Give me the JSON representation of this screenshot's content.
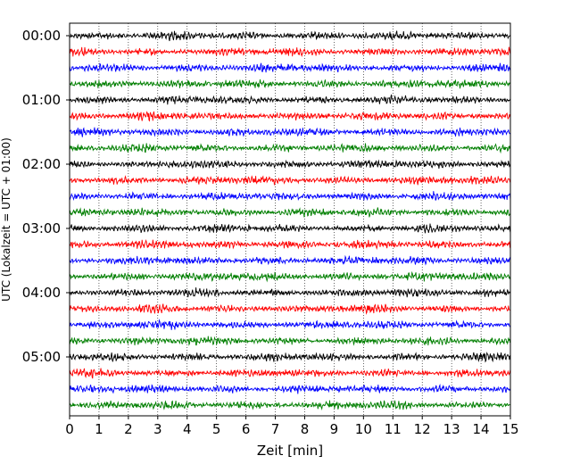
{
  "chart_data": {
    "type": "line",
    "subtype": "helicorder",
    "xlabel": "Zeit  [min]",
    "ylabel": "UTC (Lokalzeit = UTC + 01:00)",
    "xlim": [
      0,
      15
    ],
    "x_ticks": [
      "0",
      "1",
      "2",
      "3",
      "4",
      "5",
      "6",
      "7",
      "8",
      "9",
      "10",
      "11",
      "12",
      "13",
      "14",
      "15"
    ],
    "y_ticks": [
      "00:00",
      "01:00",
      "02:00",
      "03:00",
      "04:00",
      "05:00"
    ],
    "rows_per_hour": 4,
    "row_count": 24,
    "grid": "vertical dotted",
    "series_colors": [
      "#000000",
      "#ff0000",
      "#0000ff",
      "#007f00"
    ],
    "legend": "none"
  }
}
